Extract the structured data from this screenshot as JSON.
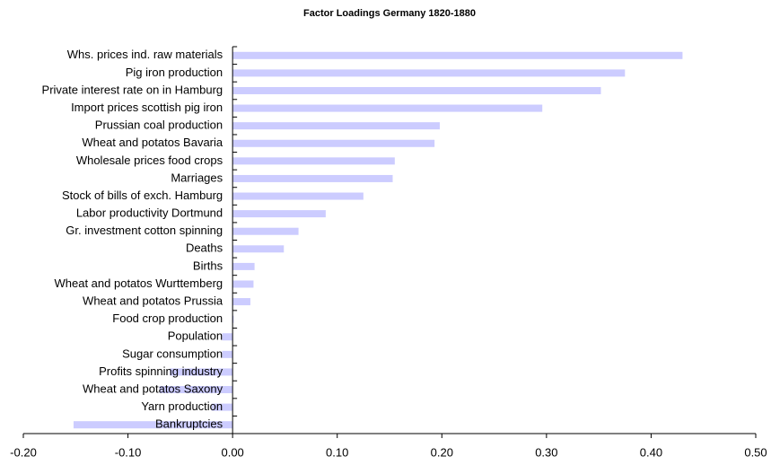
{
  "chart_data": {
    "type": "barh",
    "title": "Factor Loadings Germany 1820-1880",
    "categories": [
      "Whs. prices ind. raw materials",
      "Pig iron production",
      "Private interest rate on in Hamburg",
      "Import prices scottish pig iron",
      "Prussian coal production",
      "Wheat and potatos Bavaria",
      "Wholesale prices food crops",
      "Marriages",
      "Stock of bills of exch. Hamburg",
      "Labor productivity Dortmund",
      "Gr. investment cotton spinning",
      "Deaths",
      "Births",
      "Wheat and potatos Wurttemberg",
      "Wheat and potatos Prussia",
      "Food crop production",
      "Population",
      "Sugar consumption",
      "Profits spinning industry",
      "Wheat and potatos Saxony",
      "Yarn production",
      "Bankruptcies"
    ],
    "values": [
      0.43,
      0.375,
      0.352,
      0.296,
      0.198,
      0.193,
      0.155,
      0.153,
      0.125,
      0.089,
      0.063,
      0.049,
      0.021,
      0.02,
      0.017,
      0.001,
      -0.01,
      -0.01,
      -0.06,
      -0.07,
      -0.02,
      -0.152
    ],
    "color": "#ccccff",
    "xlim": [
      -0.2,
      0.5
    ],
    "xticks": [
      {
        "value": -0.2,
        "label": "-0.20"
      },
      {
        "value": -0.1,
        "label": "-0.10"
      },
      {
        "value": 0,
        "label": "0.00"
      },
      {
        "value": 0.1,
        "label": "0.10"
      },
      {
        "value": 0.2,
        "label": "0.20"
      },
      {
        "value": 0.3,
        "label": "0.30"
      },
      {
        "value": 0.4,
        "label": "0.40"
      },
      {
        "value": 0.5,
        "label": "0.50"
      }
    ]
  }
}
